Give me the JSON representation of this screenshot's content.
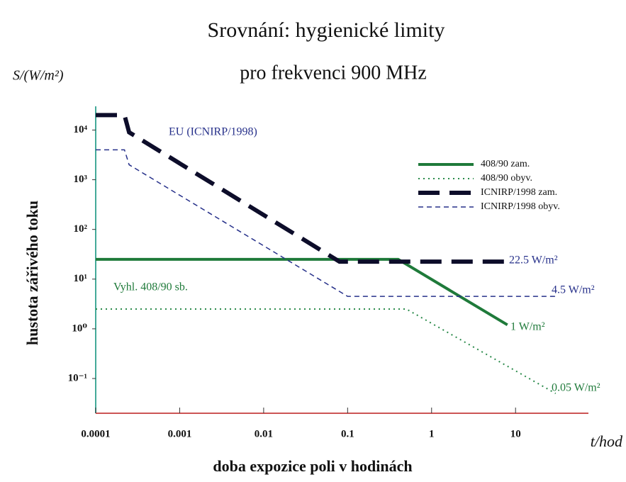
{
  "chart_data": {
    "type": "line",
    "title": "Srovnání: hygienické limity",
    "subtitle": "pro frekvenci 900 MHz",
    "y_unit_label": "S/(W/m²)",
    "y_label": "hustota zářivého toku",
    "x_label": "doba expozice poli v hodinách",
    "x_unit_label": "t/hod",
    "xscale": "log",
    "yscale": "log",
    "xlim": [
      0.0001,
      50
    ],
    "ylim": [
      0.02,
      30000
    ],
    "xticks": [
      0.0001,
      0.001,
      0.01,
      0.1,
      1,
      10
    ],
    "yticks": [
      {
        "value": 10000,
        "label": "10⁴"
      },
      {
        "value": 1000,
        "label": "10³"
      },
      {
        "value": 100,
        "label": "10²"
      },
      {
        "value": 10,
        "label": "10¹"
      },
      {
        "value": 1,
        "label": "10⁰"
      },
      {
        "value": 0.1,
        "label": "10⁻¹"
      }
    ],
    "legend": "upper right",
    "series": [
      {
        "name": "408/90 zam.",
        "color": "#1f7a3a",
        "style": "solid",
        "x": [
          0.0001,
          0.4,
          8
        ],
        "values": [
          25,
          25,
          1.2
        ]
      },
      {
        "name": "408/90 obyv.",
        "color": "#2a8a4a",
        "style": "dotted",
        "x": [
          0.0001,
          0.5,
          30
        ],
        "values": [
          2.5,
          2.5,
          0.05
        ]
      },
      {
        "name": "ICNIRP/1998 zam.",
        "color": "#0d0d2a",
        "style": "thick-dashed",
        "x": [
          0.0001,
          0.00022,
          0.00025,
          0.08,
          8
        ],
        "values": [
          20000,
          20000,
          9000,
          22.5,
          22.5
        ]
      },
      {
        "name": "ICNIRP/1998 obyv.",
        "color": "#26308a",
        "style": "dashed",
        "x": [
          0.0001,
          0.00022,
          0.00025,
          0.1,
          30
        ],
        "values": [
          4000,
          4000,
          2000,
          4.5,
          4.5
        ]
      }
    ],
    "annotations": [
      "EU (ICNIRP/1998)",
      "Vyhl. 408/90 sb.",
      "22.5 W/m²",
      "4.5 W/m²",
      "1 W/m²",
      "0.05 W/m²"
    ]
  }
}
